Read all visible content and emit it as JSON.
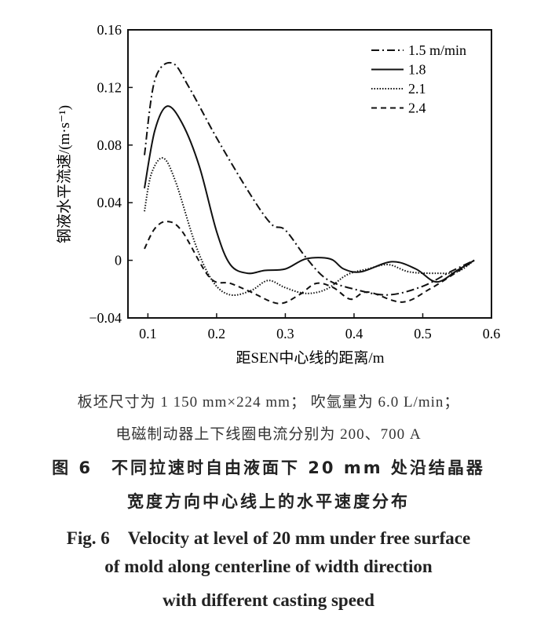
{
  "chart_data": {
    "type": "line",
    "xlabel": "距SEN中心线的距离/m",
    "ylabel": "钢液水平流速/(m·s⁻¹)",
    "xlim": [
      0.071,
      0.6
    ],
    "ylim": [
      -0.04,
      0.16
    ],
    "xticks": [
      "0.1",
      "0.2",
      "0.3",
      "0.4",
      "0.5",
      "0.6"
    ],
    "yticks": [
      "0.16",
      "0.12",
      "0.08",
      "0.04",
      "0",
      "−0.04"
    ],
    "grid": false,
    "legend_placement": "top-right",
    "series": [
      {
        "name": "1.5 m/min",
        "style": "dash-dot",
        "x": [
          0.095,
          0.11,
          0.135,
          0.16,
          0.2,
          0.25,
          0.28,
          0.3,
          0.33,
          0.36,
          0.4,
          0.45,
          0.5,
          0.54,
          0.575
        ],
        "y": [
          0.073,
          0.125,
          0.137,
          0.12,
          0.085,
          0.045,
          0.025,
          0.021,
          0.002,
          -0.013,
          -0.02,
          -0.024,
          -0.018,
          -0.008,
          0.0
        ]
      },
      {
        "name": "1.8",
        "style": "solid",
        "x": [
          0.095,
          0.11,
          0.128,
          0.15,
          0.175,
          0.2,
          0.22,
          0.245,
          0.27,
          0.3,
          0.33,
          0.365,
          0.385,
          0.41,
          0.455,
          0.49,
          0.52,
          0.55,
          0.575
        ],
        "y": [
          0.05,
          0.09,
          0.107,
          0.095,
          0.065,
          0.02,
          -0.003,
          -0.009,
          -0.007,
          -0.006,
          0.001,
          0.001,
          -0.006,
          -0.008,
          -0.001,
          -0.006,
          -0.015,
          -0.007,
          0.0
        ]
      },
      {
        "name": "2.1",
        "style": "dotted",
        "x": [
          0.095,
          0.105,
          0.122,
          0.14,
          0.17,
          0.195,
          0.22,
          0.25,
          0.275,
          0.3,
          0.33,
          0.36,
          0.39,
          0.42,
          0.45,
          0.48,
          0.52,
          0.55,
          0.575
        ],
        "y": [
          0.034,
          0.06,
          0.071,
          0.055,
          0.01,
          -0.015,
          -0.024,
          -0.021,
          -0.014,
          -0.019,
          -0.023,
          -0.02,
          -0.01,
          -0.006,
          -0.003,
          -0.008,
          -0.009,
          -0.008,
          0.0
        ]
      },
      {
        "name": "2.4",
        "style": "dashed",
        "x": [
          0.095,
          0.11,
          0.128,
          0.15,
          0.19,
          0.22,
          0.25,
          0.29,
          0.32,
          0.345,
          0.37,
          0.395,
          0.42,
          0.47,
          0.51,
          0.55,
          0.575
        ],
        "y": [
          0.008,
          0.022,
          0.027,
          0.02,
          -0.012,
          -0.016,
          -0.022,
          -0.03,
          -0.024,
          -0.016,
          -0.019,
          -0.027,
          -0.022,
          -0.029,
          -0.02,
          -0.008,
          0.0
        ]
      }
    ]
  },
  "caption": {
    "note_line1": "板坯尺寸为 1 150 mm×224 mm；  吹氩量为 6.0 L/min；",
    "note_line2": "电磁制动器上下线圈电流分别为 200、700 A",
    "cn_line1": "图 6　不同拉速时自由液面下 20 mm 处沿结晶器",
    "cn_line2": "宽度方向中心线上的水平速度分布",
    "en_line1": "Fig. 6　Velocity at level of 20 mm under free surface",
    "en_line2": "of mold along centerline of width direction",
    "en_line3": "with different casting speed"
  }
}
